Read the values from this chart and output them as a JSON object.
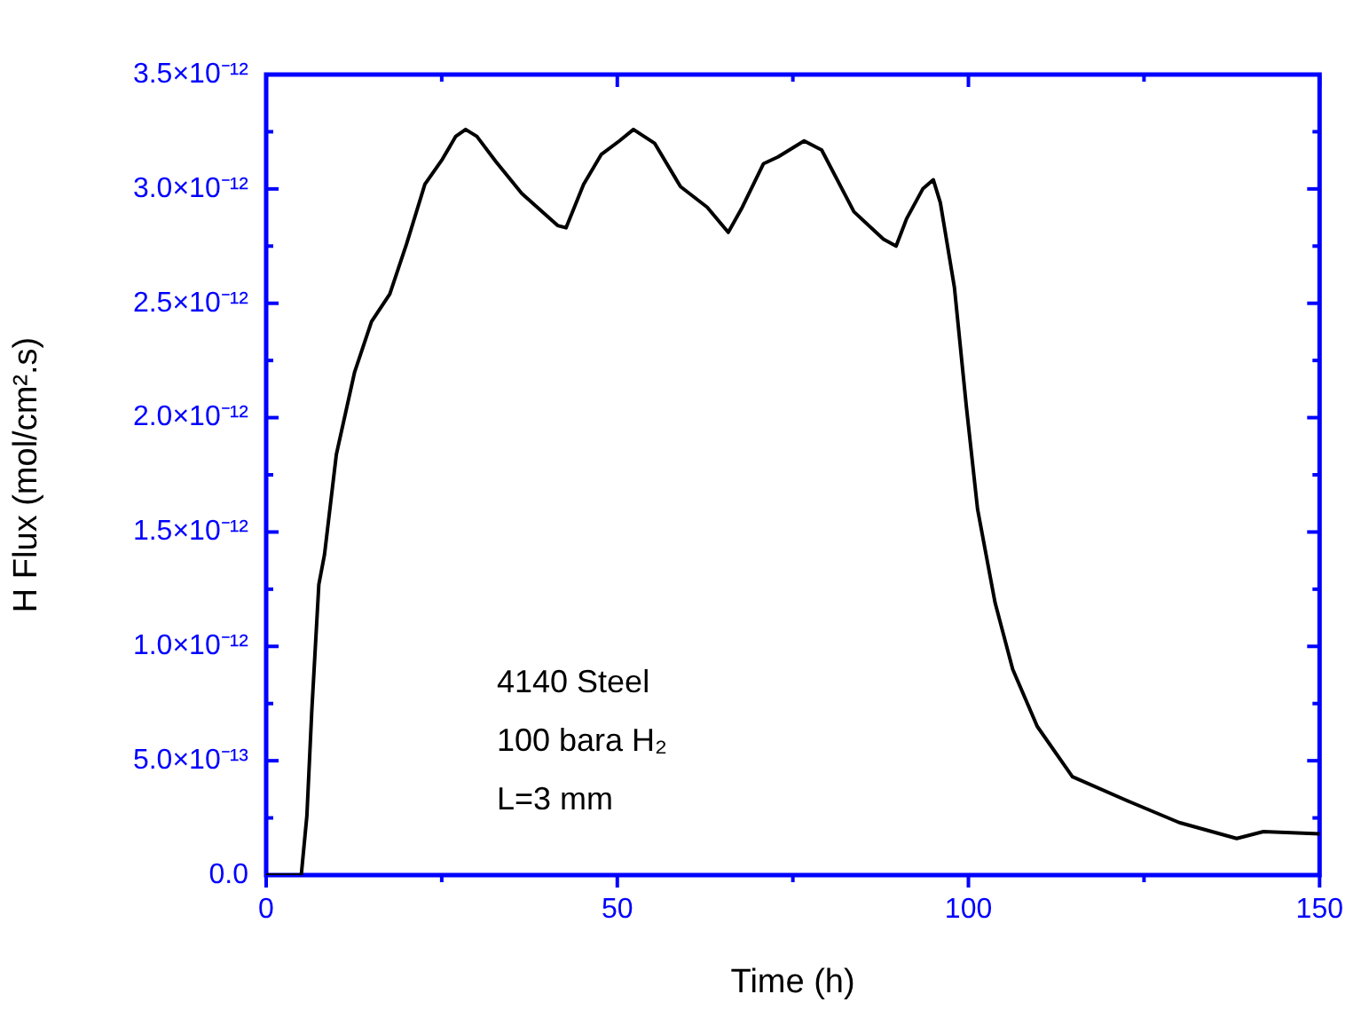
{
  "chart_data": {
    "type": "line",
    "xlabel": "Time (h)",
    "ylabel": "H Flux (mol/cm².s)",
    "annotations": [
      "4140 Steel",
      "100 bara H₂",
      "L=3 mm"
    ],
    "xlim": [
      0,
      150
    ],
    "xticks": [
      0,
      {
        "value": 25,
        "label": null
      },
      50,
      {
        "value": 75,
        "label": null
      },
      100,
      {
        "value": 125,
        "label": null
      },
      150
    ],
    "ylim": [
      0,
      3.5e-12
    ],
    "yticks": [
      {
        "value": 0,
        "label": "0.0"
      },
      {
        "value": 2.5e-13,
        "label": null
      },
      {
        "value": 5e-13,
        "label": "5.0×10⁻¹³"
      },
      {
        "value": 7.5e-13,
        "label": null
      },
      {
        "value": 1e-12,
        "label": "1.0×10⁻¹²"
      },
      {
        "value": 1.25e-12,
        "label": null
      },
      {
        "value": 1.5e-12,
        "label": "1.5×10⁻¹²"
      },
      {
        "value": 1.75e-12,
        "label": null
      },
      {
        "value": 2e-12,
        "label": "2.0×10⁻¹²"
      },
      {
        "value": 2.25e-12,
        "label": null
      },
      {
        "value": 2.5e-12,
        "label": "2.5×10⁻¹²"
      },
      {
        "value": 2.75e-12,
        "label": null
      },
      {
        "value": 3e-12,
        "label": "3.0×10⁻¹²"
      },
      {
        "value": 3.25e-12,
        "label": null
      },
      {
        "value": 3.5e-12,
        "label": "3.5×10⁻¹²"
      }
    ],
    "grid": false,
    "legend": false,
    "marker": "none",
    "line_style": "solid",
    "series": [
      {
        "color": "#000000",
        "x": [
          0,
          3,
          5,
          5.8,
          6.5,
          7.5,
          8.3,
          10,
          12.6,
          15,
          17.6,
          20,
          22.6,
          25.1,
          27,
          28.4,
          30,
          32.7,
          36.4,
          41.5,
          42.7,
          45.2,
          47.7,
          50.3,
          52.3,
          55.3,
          59,
          62.8,
          65.8,
          67.8,
          70.8,
          72.9,
          76.6,
          79.1,
          83.7,
          87.9,
          89.7,
          91.2,
          93.5,
          95,
          96,
          98,
          99.7,
          101.3,
          103.8,
          106.3,
          109.8,
          114.8,
          123,
          130,
          138.2,
          142,
          150
        ],
        "values": [
          0,
          0,
          0,
          2.6e-13,
          7.2e-13,
          1.27e-12,
          1.4e-12,
          1.84e-12,
          2.2e-12,
          2.42e-12,
          2.54e-12,
          2.76e-12,
          3.02e-12,
          3.13e-12,
          3.23e-12,
          3.26e-12,
          3.23e-12,
          3.12e-12,
          2.98e-12,
          2.84e-12,
          2.83e-12,
          3.02e-12,
          3.15e-12,
          3.21e-12,
          3.26e-12,
          3.2e-12,
          3.01e-12,
          2.92e-12,
          2.81e-12,
          2.92e-12,
          3.11e-12,
          3.14e-12,
          3.21e-12,
          3.17e-12,
          2.9e-12,
          2.78e-12,
          2.75e-12,
          2.87e-12,
          3e-12,
          3.04e-12,
          2.94e-12,
          2.57e-12,
          2.05e-12,
          1.6e-12,
          1.19e-12,
          9e-13,
          6.5e-13,
          4.3e-13,
          3.2e-13,
          2.3e-13,
          1.6e-13,
          1.9e-13,
          1.8e-13
        ]
      }
    ]
  }
}
